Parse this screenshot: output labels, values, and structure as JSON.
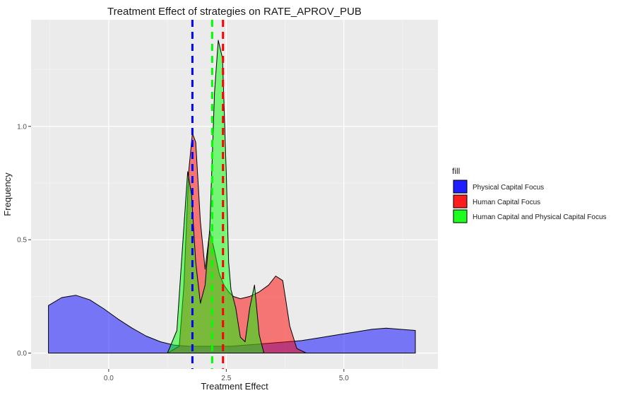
{
  "chart_data": {
    "type": "area",
    "title": "Treatment Effect of strategies on RATE_APROV_PUB",
    "xlabel": "Treatment Effect",
    "ylabel": "Frequency",
    "xlim": [
      -1.65,
      7.0
    ],
    "ylim": [
      -0.07,
      1.47
    ],
    "x_ticks": [
      0.0,
      2.5,
      5.0
    ],
    "x_tick_labels": [
      "0.0",
      "2.5",
      "5.0"
    ],
    "y_ticks": [
      0.0,
      0.5,
      1.0
    ],
    "y_tick_labels": [
      "0.0",
      "0.5",
      "1.0"
    ],
    "grid": true,
    "legend": {
      "title": "fill",
      "position": "right"
    },
    "series": [
      {
        "name": "Physical Capital Focus",
        "color": "#0000ff",
        "fill_opacity": 0.5,
        "mean_line": 1.78,
        "x": [
          -1.28,
          -1.0,
          -0.7,
          -0.4,
          -0.1,
          0.2,
          0.5,
          0.8,
          1.1,
          1.4,
          1.7,
          2.0,
          2.3,
          2.6,
          2.9,
          3.2,
          3.5,
          3.8,
          4.1,
          4.4,
          4.7,
          5.0,
          5.3,
          5.6,
          5.9,
          6.2,
          6.52
        ],
        "y": [
          0.21,
          0.245,
          0.255,
          0.235,
          0.195,
          0.15,
          0.11,
          0.075,
          0.05,
          0.035,
          0.03,
          0.03,
          0.03,
          0.03,
          0.035,
          0.04,
          0.045,
          0.05,
          0.055,
          0.065,
          0.075,
          0.085,
          0.095,
          0.105,
          0.11,
          0.105,
          0.1
        ]
      },
      {
        "name": "Human Capital Focus",
        "color": "#ff0000",
        "fill_opacity": 0.5,
        "mean_line": 2.43,
        "x": [
          1.25,
          1.5,
          1.6,
          1.7,
          1.78,
          1.85,
          1.95,
          2.05,
          2.15,
          2.25,
          2.35,
          2.45,
          2.55,
          2.65,
          2.8,
          3.0,
          3.2,
          3.4,
          3.55,
          3.7,
          3.85,
          4.0,
          4.2
        ],
        "y": [
          0.0,
          0.03,
          0.3,
          0.8,
          0.97,
          0.93,
          0.58,
          0.37,
          0.54,
          0.45,
          0.35,
          0.3,
          0.27,
          0.25,
          0.24,
          0.25,
          0.27,
          0.3,
          0.34,
          0.32,
          0.12,
          0.02,
          0.0
        ]
      },
      {
        "name": "Human Capital and Physical Capital Focus",
        "color": "#00ff00",
        "fill_opacity": 0.5,
        "mean_line": 2.2,
        "x": [
          1.25,
          1.45,
          1.58,
          1.68,
          1.76,
          1.85,
          1.95,
          2.05,
          2.15,
          2.25,
          2.33,
          2.42,
          2.5,
          2.55,
          2.6,
          2.7,
          2.8,
          2.9,
          3.0,
          3.1,
          3.2,
          3.3,
          3.5
        ],
        "y": [
          0.0,
          0.1,
          0.5,
          0.8,
          0.7,
          0.4,
          0.22,
          0.3,
          0.55,
          1.15,
          1.38,
          1.3,
          0.8,
          0.4,
          0.28,
          0.2,
          0.07,
          0.05,
          0.2,
          0.3,
          0.08,
          0.0,
          0.0
        ]
      }
    ]
  }
}
